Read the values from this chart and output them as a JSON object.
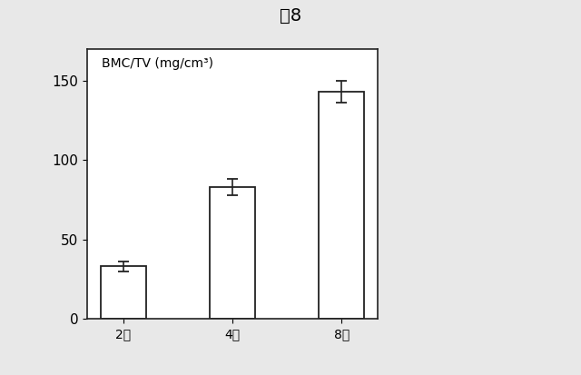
{
  "title": "図8",
  "categories": [
    "2週",
    "4週",
    "8週"
  ],
  "values": [
    33,
    83,
    143
  ],
  "errors": [
    3,
    5,
    7
  ],
  "ylabel_inside": "BMC/TV (mg/cm³)",
  "ylim": [
    0,
    170
  ],
  "yticks": [
    0,
    50,
    100,
    150
  ],
  "bar_color": "#ffffff",
  "bar_edgecolor": "#222222",
  "background_color": "#e8e8e8",
  "plot_bg_color": "#ffffff",
  "title_fontsize": 14,
  "tick_fontsize": 11,
  "label_fontsize": 10,
  "bar_width": 0.42,
  "error_capsize": 4,
  "error_linewidth": 1.2
}
